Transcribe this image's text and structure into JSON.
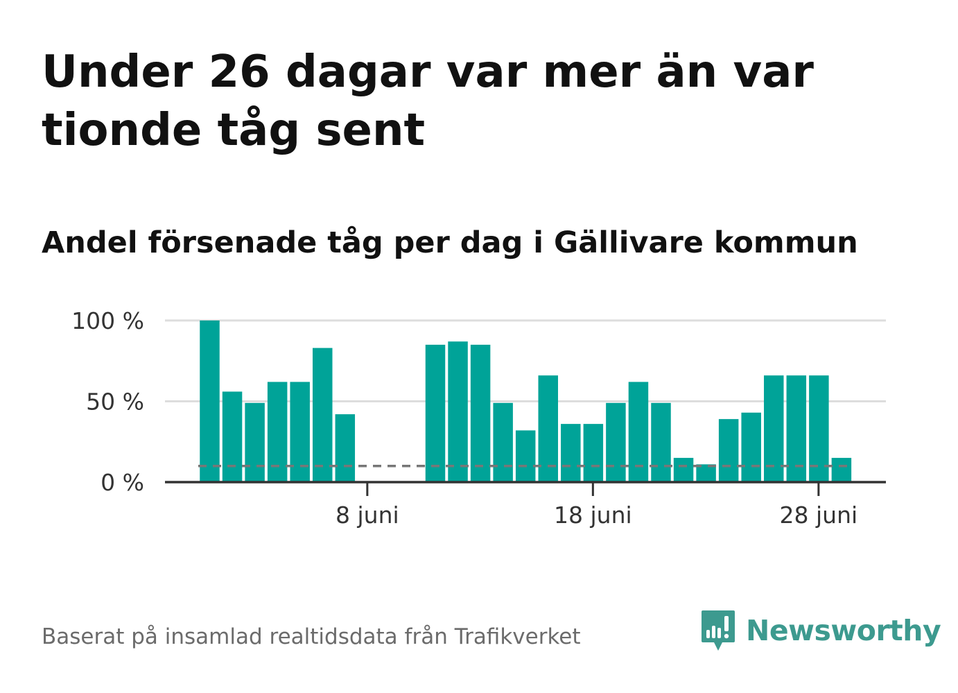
{
  "title": "Under 26 dagar var mer än var tionde tåg sent",
  "subtitle": "Andel försenade tåg per dag i Gällivare kommun",
  "source": "Baserat på insamlad realtidsdata från Trafikverket",
  "brand": {
    "name": "Newsworthy",
    "color": "#3d9a8f"
  },
  "colors": {
    "bar": "#00a398",
    "reference_line": "#777777",
    "grid": "#dddddd",
    "axis": "#333333"
  },
  "chart_data": {
    "type": "bar",
    "x": [
      "2024-06-01",
      "2024-06-02",
      "2024-06-03",
      "2024-06-04",
      "2024-06-05",
      "2024-06-06",
      "2024-06-07",
      "2024-06-08",
      "2024-06-09",
      "2024-06-10",
      "2024-06-11",
      "2024-06-12",
      "2024-06-13",
      "2024-06-14",
      "2024-06-15",
      "2024-06-16",
      "2024-06-17",
      "2024-06-18",
      "2024-06-19",
      "2024-06-20",
      "2024-06-21",
      "2024-06-22",
      "2024-06-23",
      "2024-06-24",
      "2024-06-25",
      "2024-06-26",
      "2024-06-27",
      "2024-06-28",
      "2024-06-29"
    ],
    "values": [
      100,
      56,
      49,
      62,
      62,
      83,
      42,
      null,
      null,
      null,
      85,
      87,
      85,
      49,
      32,
      66,
      36,
      36,
      49,
      62,
      49,
      15,
      11,
      39,
      43,
      66,
      66,
      66,
      15
    ],
    "reference_line": {
      "value": 10
    },
    "ylim": [
      0,
      100
    ],
    "yticks": [
      0,
      50,
      100
    ],
    "ytick_labels": [
      "0 %",
      "50 %",
      "100 %"
    ],
    "xticks": [
      "2024-06-08",
      "2024-06-18",
      "2024-06-28"
    ],
    "xtick_labels": [
      "8 juni",
      "18 juni",
      "28 juni"
    ],
    "grid": true,
    "legend": "none"
  }
}
